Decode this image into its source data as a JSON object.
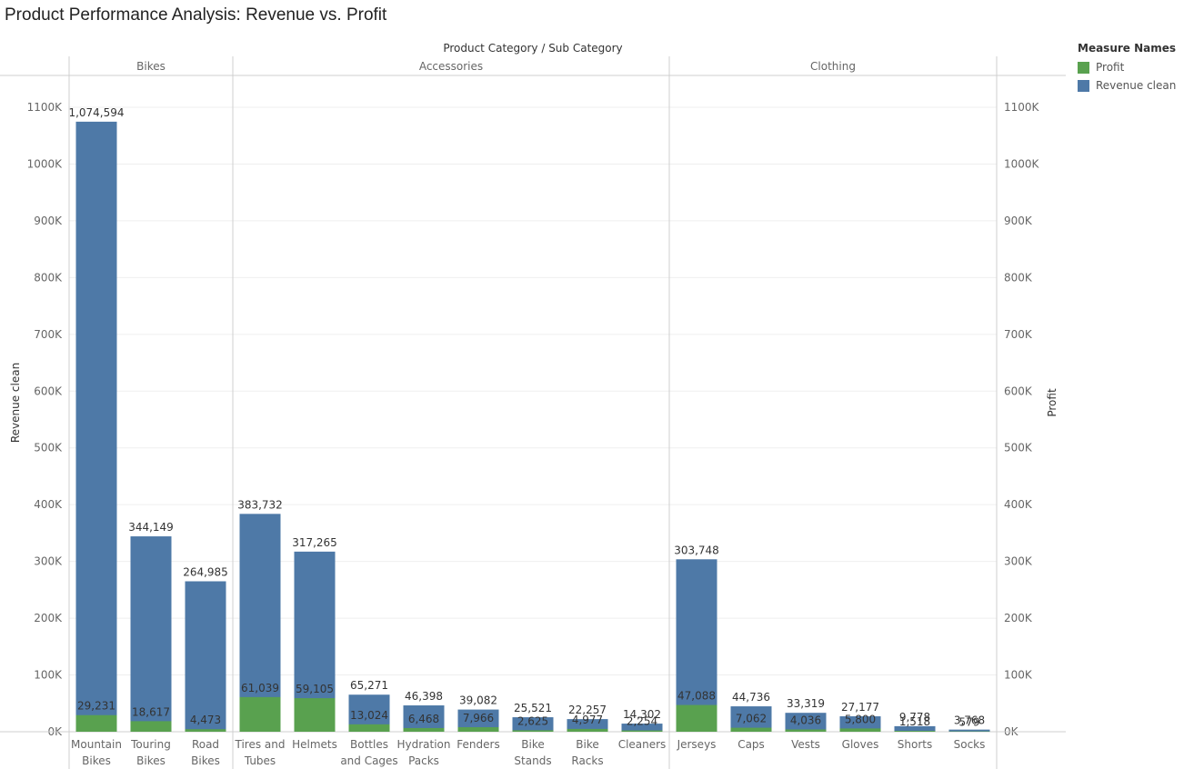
{
  "title": "Product Performance Analysis: Revenue vs. Profit",
  "legend": {
    "title": "Measure Names",
    "items": [
      {
        "label": "Profit",
        "color": "#59a14f"
      },
      {
        "label": "Revenue clean",
        "color": "#4e79a7"
      }
    ]
  },
  "chart_data": {
    "type": "bar",
    "header_title": "Product Category  /  Sub Category",
    "ylabel_left": "Revenue clean",
    "ylabel_right": "Profit",
    "ylim": [
      0,
      1100000
    ],
    "ticks": [
      "0K",
      "100K",
      "200K",
      "300K",
      "400K",
      "500K",
      "600K",
      "700K",
      "800K",
      "900K",
      "1000K",
      "1100K"
    ],
    "categories": [
      "Bikes",
      "Accessories",
      "Clothing"
    ],
    "subcategories": [
      {
        "category": "Bikes",
        "label": [
          "Mountain",
          "Bikes"
        ],
        "revenue": 1074594,
        "profit": 29231,
        "revenue_label": "1,074,594",
        "profit_label": "29,231"
      },
      {
        "category": "Bikes",
        "label": [
          "Touring",
          "Bikes"
        ],
        "revenue": 344149,
        "profit": 18617,
        "revenue_label": "344,149",
        "profit_label": "18,617"
      },
      {
        "category": "Bikes",
        "label": [
          "Road",
          "Bikes"
        ],
        "revenue": 264985,
        "profit": 4473,
        "revenue_label": "264,985",
        "profit_label": "4,473"
      },
      {
        "category": "Accessories",
        "label": [
          "Tires and",
          "Tubes"
        ],
        "revenue": 383732,
        "profit": 61039,
        "revenue_label": "383,732",
        "profit_label": "61,039"
      },
      {
        "category": "Accessories",
        "label": [
          "Helmets"
        ],
        "revenue": 317265,
        "profit": 59105,
        "revenue_label": "317,265",
        "profit_label": "59,105"
      },
      {
        "category": "Accessories",
        "label": [
          "Bottles",
          "and Cages"
        ],
        "revenue": 65271,
        "profit": 13024,
        "revenue_label": "65,271",
        "profit_label": "13,024"
      },
      {
        "category": "Accessories",
        "label": [
          "Hydration",
          "Packs"
        ],
        "revenue": 46398,
        "profit": 6468,
        "revenue_label": "46,398",
        "profit_label": "6,468"
      },
      {
        "category": "Accessories",
        "label": [
          "Fenders"
        ],
        "revenue": 39082,
        "profit": 7966,
        "revenue_label": "39,082",
        "profit_label": "7,966"
      },
      {
        "category": "Accessories",
        "label": [
          "Bike",
          "Stands"
        ],
        "revenue": 25521,
        "profit": 2625,
        "revenue_label": "25,521",
        "profit_label": "2,625"
      },
      {
        "category": "Accessories",
        "label": [
          "Bike",
          "Racks"
        ],
        "revenue": 22257,
        "profit": 4977,
        "revenue_label": "22,257",
        "profit_label": "4,977"
      },
      {
        "category": "Accessories",
        "label": [
          "Cleaners"
        ],
        "revenue": 14302,
        "profit": 2254,
        "revenue_label": "14,302",
        "profit_label": "2,254"
      },
      {
        "category": "Clothing",
        "label": [
          "Jerseys"
        ],
        "revenue": 303748,
        "profit": 47088,
        "revenue_label": "303,748",
        "profit_label": "47,088"
      },
      {
        "category": "Clothing",
        "label": [
          "Caps"
        ],
        "revenue": 44736,
        "profit": 7062,
        "revenue_label": "44,736",
        "profit_label": "7,062"
      },
      {
        "category": "Clothing",
        "label": [
          "Vests"
        ],
        "revenue": 33319,
        "profit": 4036,
        "revenue_label": "33,319",
        "profit_label": "4,036"
      },
      {
        "category": "Clothing",
        "label": [
          "Gloves"
        ],
        "revenue": 27177,
        "profit": 5800,
        "revenue_label": "27,177",
        "profit_label": "5,800"
      },
      {
        "category": "Clothing",
        "label": [
          "Shorts"
        ],
        "revenue": 9778,
        "profit": 1518,
        "revenue_label": "9,778",
        "profit_label": "1,518"
      },
      {
        "category": "Clothing",
        "label": [
          "Socks"
        ],
        "revenue": 3768,
        "profit": 579,
        "revenue_label": "3,768",
        "profit_label": "579"
      }
    ]
  }
}
